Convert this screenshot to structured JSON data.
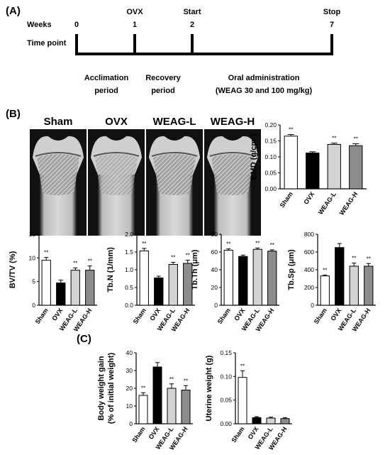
{
  "panels": {
    "a": "(A)",
    "b": "(B)",
    "c": "(C)"
  },
  "timeline": {
    "weeks_label": "Weeks",
    "timepoint_label": "Time point",
    "ticks": [
      {
        "value": "0",
        "event": ""
      },
      {
        "value": "1",
        "event": "OVX"
      },
      {
        "value": "2",
        "event": "Start"
      },
      {
        "value": "7",
        "event": "Stop"
      }
    ],
    "periods": [
      {
        "line1": "Acclimation",
        "line2": "period"
      },
      {
        "line1": "Recovery",
        "line2": "period"
      },
      {
        "line1": "Oral administration",
        "line2": "(WEAG 30 and 100 mg/kg)"
      }
    ]
  },
  "images": {
    "labels": [
      "Sham",
      "OVX",
      "WEAG-L",
      "WEAG-H"
    ]
  },
  "colors": {
    "sham": "#ffffff",
    "ovx": "#000000",
    "weag_l": "#d3d3d3",
    "weag_h": "#8c8c8c",
    "edge": "#000000"
  },
  "significance": "**",
  "chart_data": [
    {
      "id": "bmd",
      "type": "bar",
      "categories": [
        "Sham",
        "OVX",
        "WEAG-L",
        "WEAG-H"
      ],
      "values": [
        0.165,
        0.112,
        0.139,
        0.135
      ],
      "errors": [
        0.005,
        0.004,
        0.004,
        0.006
      ],
      "sig": [
        true,
        false,
        true,
        true
      ],
      "ylabel": "BMD (g/cm³)",
      "ylim": [
        0,
        0.2
      ],
      "yticks": [
        "0.00",
        "0.05",
        "0.10",
        "0.15",
        "0.20"
      ]
    },
    {
      "id": "bvtv",
      "type": "bar",
      "categories": [
        "Sham",
        "OVX",
        "WEAG-L",
        "WEAG-H"
      ],
      "values": [
        9.5,
        4.7,
        7.4,
        7.4
      ],
      "errors": [
        0.6,
        0.6,
        0.5,
        0.9
      ],
      "sig": [
        true,
        false,
        true,
        true
      ],
      "ylabel": "BV/TV (%)",
      "ylim": [
        0,
        15
      ],
      "yticks": [
        "0",
        "5",
        "10",
        "15"
      ]
    },
    {
      "id": "tbn",
      "type": "bar",
      "categories": [
        "Sham",
        "OVX",
        "WEAG-L",
        "WEAG-H"
      ],
      "values": [
        1.53,
        0.77,
        1.15,
        1.18
      ],
      "errors": [
        0.07,
        0.05,
        0.06,
        0.09
      ],
      "sig": [
        true,
        false,
        true,
        true
      ],
      "ylabel": "Tb.N (1/mm)",
      "ylim": [
        0,
        2.0
      ],
      "yticks": [
        "0.0",
        "0.5",
        "1.0",
        "1.5",
        "2.0"
      ]
    },
    {
      "id": "tbth",
      "type": "bar",
      "categories": [
        "Sham",
        "OVX",
        "WEAG-L",
        "WEAG-H"
      ],
      "values": [
        62,
        55,
        63,
        61
      ],
      "errors": [
        1.5,
        1.5,
        1.5,
        1.5
      ],
      "sig": [
        true,
        false,
        true,
        true
      ],
      "ylabel": "Tb.Th (μm)",
      "ylim": [
        0,
        80
      ],
      "yticks": [
        "0",
        "20",
        "40",
        "60",
        "80"
      ]
    },
    {
      "id": "tbsp",
      "type": "bar",
      "categories": [
        "Sham",
        "OVX",
        "WEAG-L",
        "WEAG-H"
      ],
      "values": [
        330,
        650,
        440,
        440
      ],
      "errors": [
        10,
        45,
        35,
        30
      ],
      "sig": [
        true,
        false,
        true,
        true
      ],
      "ylabel": "Tb.Sp (μm)",
      "ylim": [
        0,
        800
      ],
      "yticks": [
        "0",
        "200",
        "400",
        "600",
        "800"
      ]
    },
    {
      "id": "bwg",
      "type": "bar",
      "categories": [
        "Sham",
        "OVX",
        "WEAG-L",
        "WEAG-H"
      ],
      "values": [
        16,
        32,
        20,
        19
      ],
      "errors": [
        1.5,
        2.5,
        2.5,
        2.5
      ],
      "sig": [
        true,
        false,
        true,
        true
      ],
      "ylabel": "Body weight gain",
      "ylabel2": "(% of initial weight)",
      "ylim": [
        0,
        40
      ],
      "yticks": [
        "0",
        "10",
        "20",
        "30",
        "40"
      ]
    },
    {
      "id": "uterine",
      "type": "bar",
      "categories": [
        "Sham",
        "OVX",
        "WEAG-L",
        "WEAG-H"
      ],
      "values": [
        0.098,
        0.013,
        0.012,
        0.011
      ],
      "errors": [
        0.014,
        0.002,
        0.002,
        0.002
      ],
      "sig": [
        true,
        false,
        false,
        false
      ],
      "ylabel": "Uterine weight (g)",
      "ylim": [
        0,
        0.15
      ],
      "yticks": [
        "0.00",
        "0.05",
        "0.10",
        "0.15"
      ]
    }
  ]
}
